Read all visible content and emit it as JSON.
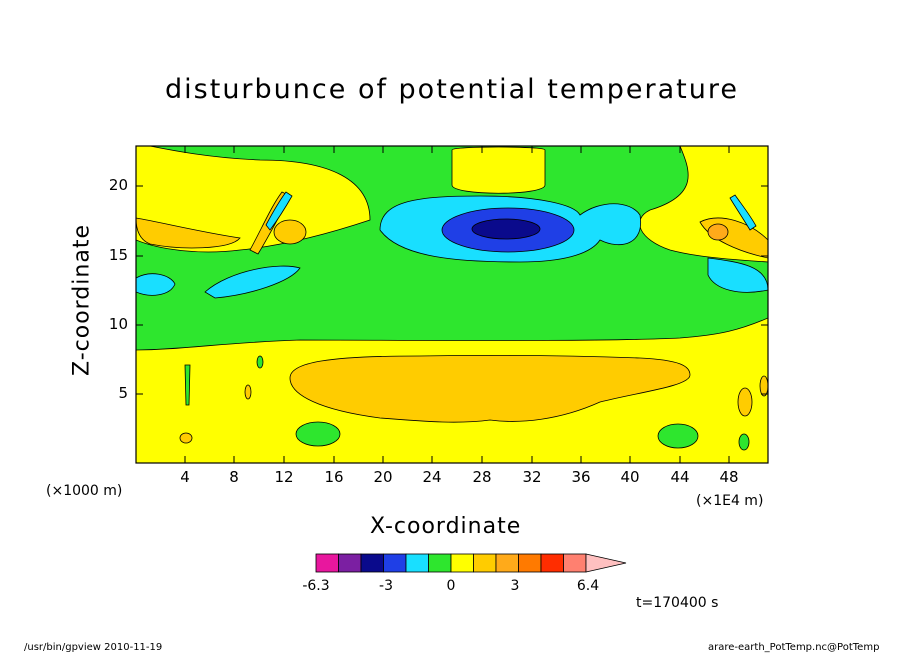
{
  "chart_data": {
    "type": "heatmap",
    "title": "disturbunce of potential temperature",
    "xlabel": "X-coordinate",
    "ylabel": "Z-coordinate",
    "x_unit_left": "(×1000 m)",
    "x_unit_right": "(×1E4 m)",
    "xlim": [
      0,
      52
    ],
    "ylim": [
      0,
      23
    ],
    "x_ticks": [
      "4",
      "8",
      "12",
      "16",
      "20",
      "24",
      "28",
      "32",
      "36",
      "40",
      "44",
      "48"
    ],
    "y_ticks": [
      "5",
      "10",
      "15",
      "20"
    ],
    "colorbar": {
      "levels": [
        -6.3,
        -5.4,
        -4.5,
        -3.6,
        -2.7,
        -1.8,
        -0.9,
        0,
        0.9,
        1.8,
        2.7,
        3.6,
        4.5,
        5.4,
        6.4
      ],
      "colors": [
        "#e8179e",
        "#7b1fa2",
        "#0a0a8c",
        "#1f3fe6",
        "#19dfff",
        "#2ee62e",
        "#ffff00",
        "#ffcc00",
        "#ffaa1a",
        "#ff7a00",
        "#ff2d00",
        "#ff8070"
      ],
      "overflow_color": "#ffc0c0",
      "labels": [
        "-6.3",
        "-3",
        "0",
        "3",
        "6.4"
      ]
    },
    "time_label": "t=170400 s"
  },
  "footer": {
    "left": "/usr/bin/gpview   2010-11-19",
    "right": "arare-earth_PotTemp.nc@PotTemp"
  }
}
